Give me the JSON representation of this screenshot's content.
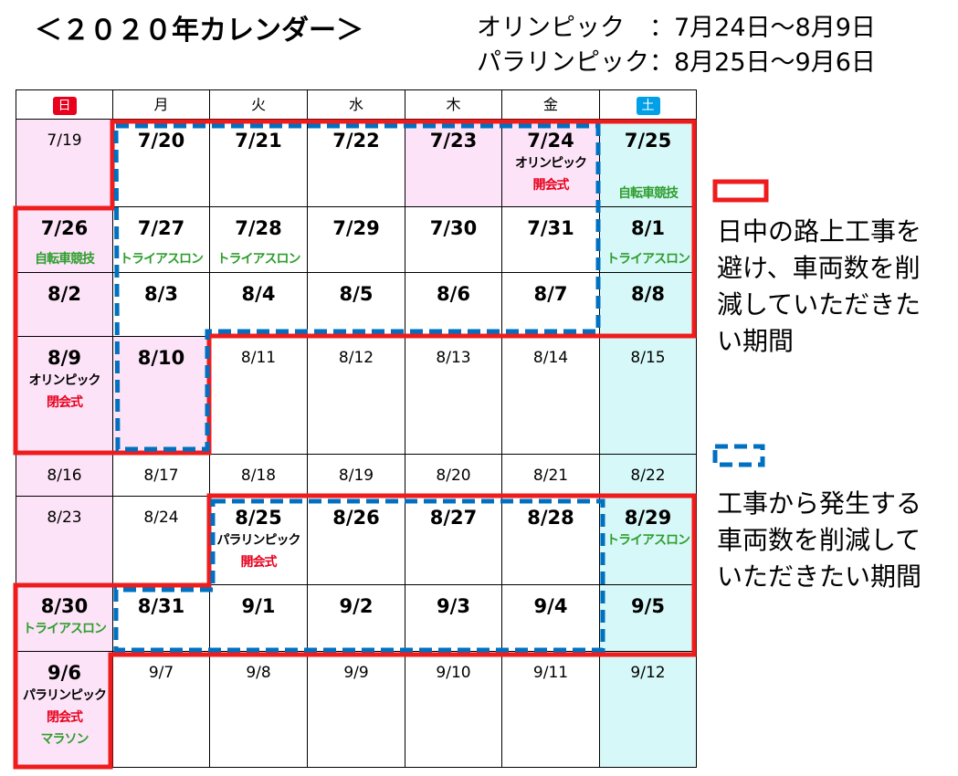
{
  "header": {
    "title": "＜２０２０年カレンダー＞",
    "periods": [
      "オリンピック　：7月24日～8月9日",
      "パラリンピック：8月25日～9月6日"
    ]
  },
  "calendar": {
    "weekdays": [
      {
        "text": "日",
        "badge": "#e8001c"
      },
      {
        "text": "月"
      },
      {
        "text": "火"
      },
      {
        "text": "水"
      },
      {
        "text": "木"
      },
      {
        "text": "金"
      },
      {
        "text": "土",
        "badge": "#00a0e9"
      }
    ],
    "weeks": [
      [
        {
          "date": "7/19",
          "bg": "#fde3f7"
        },
        {
          "date": "7/20",
          "bold": true
        },
        {
          "date": "7/21",
          "bold": true
        },
        {
          "date": "7/22",
          "bold": true
        },
        {
          "date": "7/23",
          "bold": true,
          "bg": "#fde3f7"
        },
        {
          "date": "7/24",
          "bold": true,
          "bg": "#fde3f7",
          "events": [
            {
              "text": "オリンピック",
              "color": "#000000"
            },
            {
              "text": "開会式",
              "color": "#e8001c"
            }
          ]
        },
        {
          "date": "7/25",
          "bold": true,
          "bg": "#d7f8f8",
          "events": [
            {
              "text": "自転車競技",
              "color": "#2e9e2e"
            }
          ],
          "bottom": true
        }
      ],
      [
        {
          "date": "7/26",
          "bold": true,
          "bg": "#fde3f7",
          "events": [
            {
              "text": "自転車競技",
              "color": "#2e9e2e"
            }
          ],
          "bottom": true
        },
        {
          "date": "7/27",
          "bold": true,
          "events": [
            {
              "text": "トライアスロン",
              "color": "#2e9e2e"
            }
          ],
          "bottom": true
        },
        {
          "date": "7/28",
          "bold": true,
          "events": [
            {
              "text": "トライアスロン",
              "color": "#2e9e2e"
            }
          ],
          "bottom": true
        },
        {
          "date": "7/29",
          "bold": true
        },
        {
          "date": "7/30",
          "bold": true
        },
        {
          "date": "7/31",
          "bold": true
        },
        {
          "date": "8/1",
          "bold": true,
          "bg": "#d7f8f8",
          "events": [
            {
              "text": "トライアスロン",
              "color": "#2e9e2e"
            }
          ],
          "bottom": true
        }
      ],
      [
        {
          "date": "8/2",
          "bold": true,
          "bg": "#fde3f7"
        },
        {
          "date": "8/3",
          "bold": true
        },
        {
          "date": "8/4",
          "bold": true
        },
        {
          "date": "8/5",
          "bold": true
        },
        {
          "date": "8/6",
          "bold": true
        },
        {
          "date": "8/7",
          "bold": true
        },
        {
          "date": "8/8",
          "bold": true,
          "bg": "#d7f8f8"
        }
      ],
      [
        {
          "date": "8/9",
          "bold": true,
          "bg": "#fde3f7",
          "events": [
            {
              "text": "オリンピック",
              "color": "#000000"
            },
            {
              "text": "閉会式",
              "color": "#e8001c"
            }
          ]
        },
        {
          "date": "8/10",
          "bold": true,
          "bg": "#fde3f7"
        },
        {
          "date": "8/11"
        },
        {
          "date": "8/12"
        },
        {
          "date": "8/13"
        },
        {
          "date": "8/14"
        },
        {
          "date": "8/15",
          "bg": "#d7f8f8"
        }
      ],
      [
        {
          "date": "8/16",
          "bg": "#fde3f7"
        },
        {
          "date": "8/17"
        },
        {
          "date": "8/18"
        },
        {
          "date": "8/19"
        },
        {
          "date": "8/20"
        },
        {
          "date": "8/21"
        },
        {
          "date": "8/22",
          "bg": "#d7f8f8"
        }
      ],
      [
        {
          "date": "8/23",
          "bg": "#fde3f7"
        },
        {
          "date": "8/24"
        },
        {
          "date": "8/25",
          "bold": true,
          "events": [
            {
              "text": "パラリンピック",
              "color": "#000000"
            },
            {
              "text": "開会式",
              "color": "#e8001c"
            }
          ]
        },
        {
          "date": "8/26",
          "bold": true
        },
        {
          "date": "8/27",
          "bold": true
        },
        {
          "date": "8/28",
          "bold": true
        },
        {
          "date": "8/29",
          "bold": true,
          "bg": "#d7f8f8",
          "events": [
            {
              "text": "トライアスロン",
              "color": "#2e9e2e"
            }
          ]
        }
      ],
      [
        {
          "date": "8/30",
          "bold": true,
          "bg": "#fde3f7",
          "events": [
            {
              "text": "トライアスロン",
              "color": "#2e9e2e"
            }
          ]
        },
        {
          "date": "8/31",
          "bold": true
        },
        {
          "date": "9/1",
          "bold": true
        },
        {
          "date": "9/2",
          "bold": true
        },
        {
          "date": "9/3",
          "bold": true
        },
        {
          "date": "9/4",
          "bold": true
        },
        {
          "date": "9/5",
          "bold": true,
          "bg": "#d7f8f8"
        }
      ],
      [
        {
          "date": "9/6",
          "bold": true,
          "bg": "#fde3f7",
          "events": [
            {
              "text": "パラリンピック",
              "color": "#000000"
            },
            {
              "text": "閉会式",
              "color": "#e8001c"
            },
            {
              "text": "マラソン",
              "color": "#2e9e2e"
            }
          ]
        },
        {
          "date": "9/7"
        },
        {
          "date": "9/8"
        },
        {
          "date": "9/9"
        },
        {
          "date": "9/10"
        },
        {
          "date": "9/11"
        },
        {
          "date": "9/12",
          "bg": "#d7f8f8"
        }
      ]
    ]
  },
  "legend": [
    {
      "lines": [
        "日中の路上工事を",
        "避け、車両数を削",
        "減していただきた",
        "い期間"
      ]
    },
    {
      "lines": [
        "工事から発生する",
        "車両数を削減して",
        "いただきたい期間"
      ]
    }
  ]
}
